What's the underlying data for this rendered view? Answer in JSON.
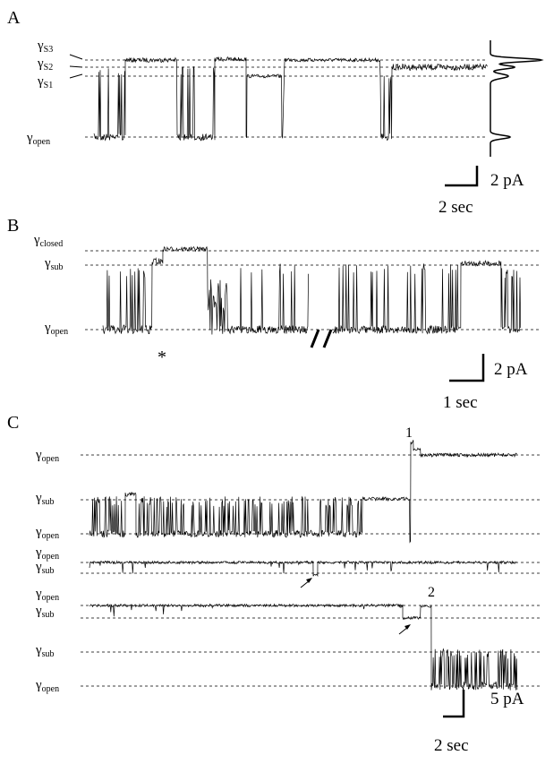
{
  "panels": [
    {
      "label": "A",
      "levels": [
        {
          "symbol": "γ",
          "sub": "S3"
        },
        {
          "symbol": "γ",
          "sub": "S2"
        },
        {
          "symbol": "γ",
          "sub": "S1"
        },
        {
          "symbol": "γ",
          "sub": "open"
        }
      ],
      "scale_bar": {
        "current": "2 pA",
        "time": "2 sec"
      }
    },
    {
      "label": "B",
      "levels": [
        {
          "symbol": "γ",
          "sub": "closed"
        },
        {
          "symbol": "γ",
          "sub": "sub"
        },
        {
          "symbol": "γ",
          "sub": "open"
        }
      ],
      "annotations": [
        "*"
      ],
      "scale_bar": {
        "current": "2 pA",
        "time": "1 sec"
      }
    },
    {
      "label": "C",
      "levels": [
        {
          "symbol": "γ",
          "sub": "open"
        },
        {
          "symbol": "γ",
          "sub": "sub"
        },
        {
          "symbol": "γ",
          "sub": "open"
        },
        {
          "symbol": "γ",
          "sub": "open"
        },
        {
          "symbol": "γ",
          "sub": "sub"
        },
        {
          "symbol": "γ",
          "sub": "open"
        },
        {
          "symbol": "γ",
          "sub": "sub"
        },
        {
          "symbol": "γ",
          "sub": "sub"
        },
        {
          "symbol": "γ",
          "sub": "open"
        }
      ],
      "annotations": [
        "1",
        "2"
      ],
      "scale_bar": {
        "current": "5 pA",
        "time": "2 sec"
      }
    }
  ]
}
